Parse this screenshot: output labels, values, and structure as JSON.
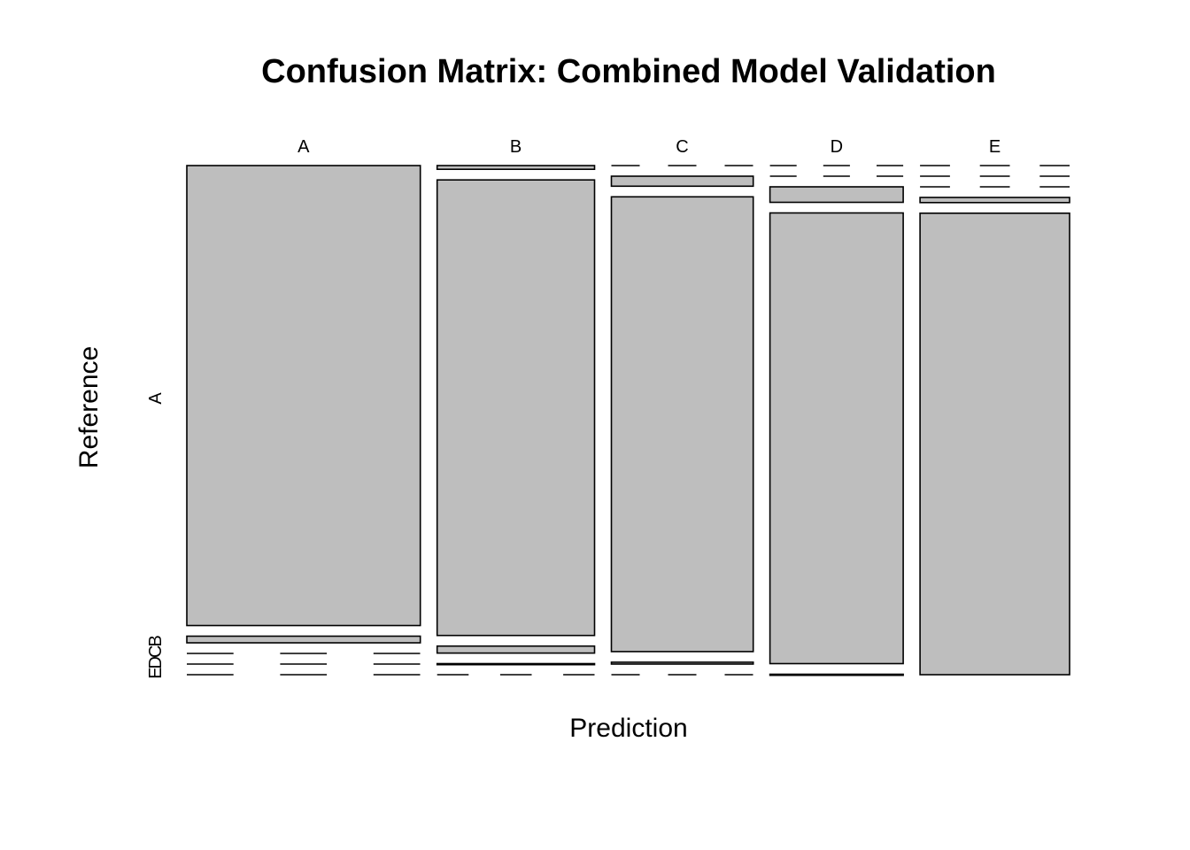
{
  "chart_data": {
    "type": "mosaic",
    "title": "Confusion Matrix: Combined Model Validation",
    "xlabel": "Prediction",
    "ylabel": "Reference",
    "x_categories": [
      "A",
      "B",
      "C",
      "D",
      "E"
    ],
    "y_categories": [
      "A",
      "B",
      "C",
      "D",
      "E"
    ],
    "y_tick_labels": {
      "first": "A",
      "rest": "EDCB"
    },
    "cell_fill": "#bebebe",
    "cell_stroke": "#000000",
    "matrix": [
      [
        1665,
        24,
        0,
        0,
        0
      ],
      [
        9,
        1112,
        17,
        1,
        0
      ],
      [
        0,
        22,
        1000,
        4,
        0
      ],
      [
        0,
        0,
        32,
        931,
        1
      ],
      [
        0,
        0,
        0,
        12,
        1070
      ]
    ],
    "matrix_orientation": "rows = prediction, columns = reference"
  }
}
